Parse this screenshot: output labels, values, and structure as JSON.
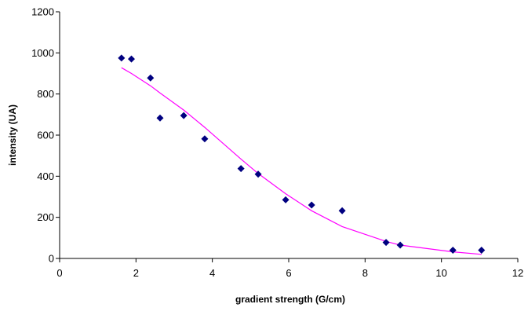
{
  "chart_data": {
    "type": "scatter",
    "title": "",
    "xlabel": "gradient strength (G/cm)",
    "ylabel": "intensity (UA)",
    "xlim": [
      0,
      12
    ],
    "ylim": [
      0,
      1200
    ],
    "xticks": [
      0,
      2,
      4,
      6,
      8,
      10,
      12
    ],
    "yticks": [
      0,
      200,
      400,
      600,
      800,
      1000,
      1200
    ],
    "grid": false,
    "legend": "none",
    "series": [
      {
        "kind": "scatter",
        "marker": "diamond",
        "color": "#000080",
        "x": [
          1.62,
          1.88,
          2.38,
          2.63,
          3.25,
          3.8,
          4.75,
          5.2,
          5.92,
          6.6,
          7.4,
          8.55,
          8.92,
          10.3,
          11.05
        ],
        "y": [
          975,
          970,
          878,
          683,
          695,
          582,
          437,
          410,
          285,
          260,
          232,
          78,
          65,
          40,
          40
        ]
      },
      {
        "kind": "line",
        "color": "#ff00ff",
        "x": [
          1.62,
          1.88,
          2.38,
          2.63,
          3.25,
          3.8,
          4.75,
          5.2,
          5.92,
          6.6,
          7.4,
          8.55,
          8.92,
          10.3,
          11.05
        ],
        "y": [
          928,
          900,
          840,
          805,
          722,
          638,
          483,
          413,
          315,
          232,
          155,
          83,
          65,
          32,
          20
        ]
      }
    ]
  }
}
